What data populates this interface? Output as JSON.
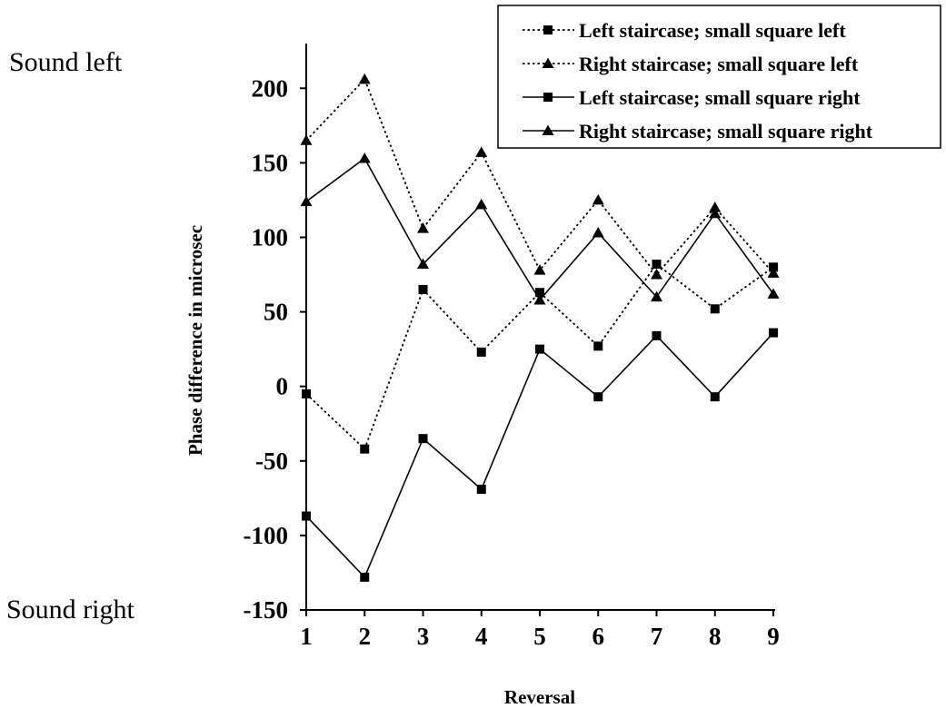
{
  "annotations": {
    "top": "Sound left",
    "bottom": "Sound right"
  },
  "chart_data": {
    "type": "line",
    "title": "",
    "xlabel": "Reversal",
    "ylabel": "Phase difference in microsec",
    "x": [
      1,
      2,
      3,
      4,
      5,
      6,
      7,
      8,
      9
    ],
    "xlim": [
      1,
      9
    ],
    "ylim": [
      -150,
      230
    ],
    "yticks": [
      -150,
      -100,
      -50,
      0,
      50,
      100,
      150,
      200
    ],
    "xticks": [
      1,
      2,
      3,
      4,
      5,
      6,
      7,
      8,
      9
    ],
    "grid": false,
    "legend_position": "top-right",
    "series": [
      {
        "name": "Left staircase; small square left",
        "marker": "square",
        "line": "dotted",
        "values": [
          -5,
          -42,
          65,
          23,
          63,
          27,
          82,
          52,
          80
        ]
      },
      {
        "name": "Right staircase; small square left",
        "marker": "triangle",
        "line": "dotted",
        "values": [
          165,
          206,
          106,
          157,
          78,
          125,
          75,
          120,
          76
        ]
      },
      {
        "name": "Left staircase; small square right",
        "marker": "square",
        "line": "solid",
        "values": [
          -87,
          -128,
          -35,
          -69,
          25,
          -7,
          34,
          -7,
          36
        ]
      },
      {
        "name": "Right staircase; small square right",
        "marker": "triangle",
        "line": "solid",
        "values": [
          124,
          153,
          82,
          122,
          58,
          103,
          60,
          116,
          62
        ]
      }
    ]
  }
}
